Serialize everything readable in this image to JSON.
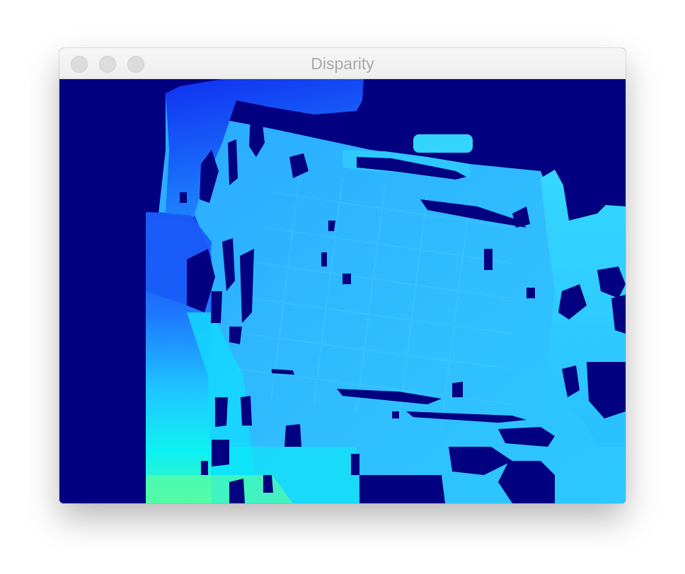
{
  "window": {
    "title": "Disparity"
  },
  "titlebar_buttons": [
    "close",
    "minimize",
    "zoom"
  ],
  "image": {
    "type": "disparity-map",
    "colormap": "jet",
    "background_color": "#000080",
    "dominant_colors": [
      "#000080",
      "#1030f0",
      "#1e90ff",
      "#30c8ff",
      "#00e8ff",
      "#80ff80"
    ]
  }
}
